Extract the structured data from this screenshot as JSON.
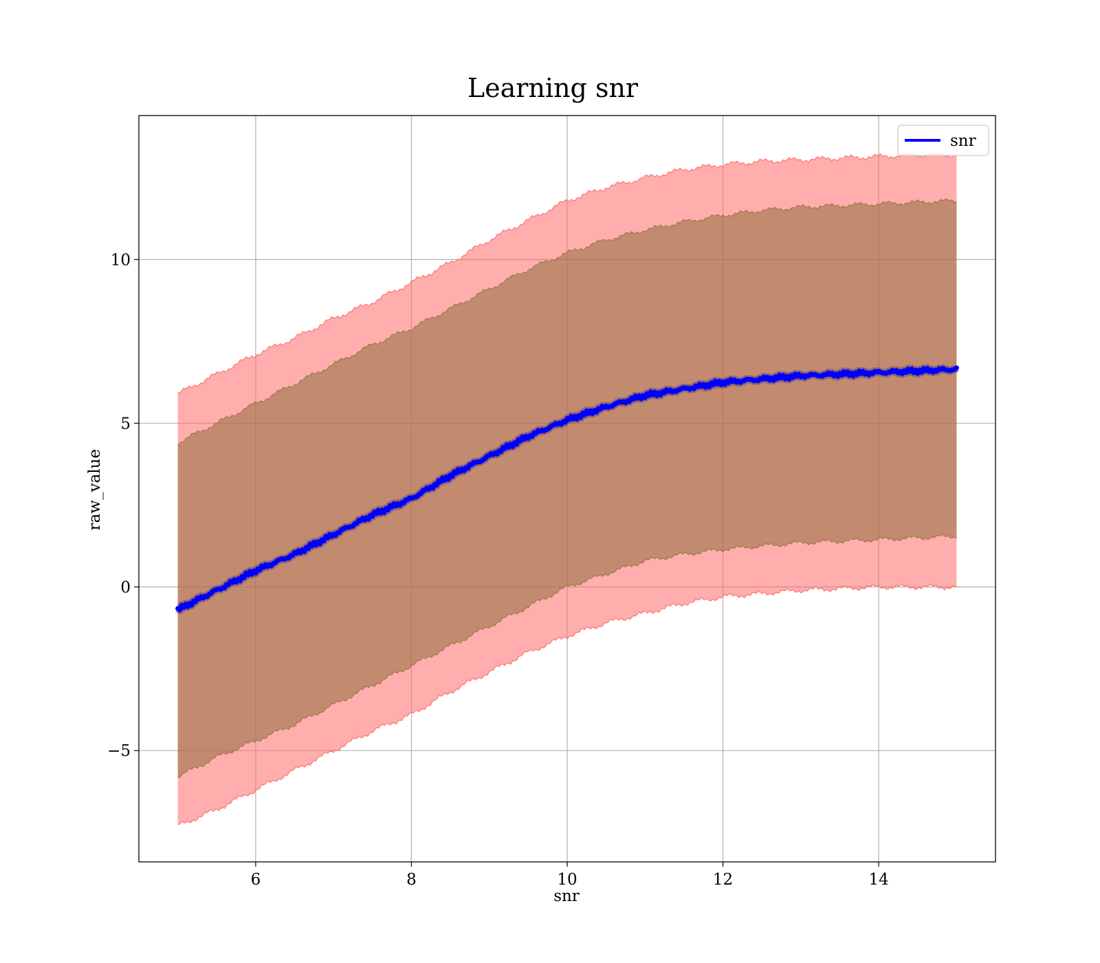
{
  "chart_data": {
    "type": "line",
    "title": "Learning snr",
    "xlabel": "snr",
    "ylabel": "raw_value",
    "xlim": [
      4.5,
      15.5
    ],
    "ylim": [
      -8.4,
      14.4
    ],
    "xticks": [
      6,
      8,
      10,
      12,
      14
    ],
    "xtick_labels": [
      "6",
      "8",
      "10",
      "12",
      "14"
    ],
    "yticks": [
      -5,
      0,
      5,
      10
    ],
    "ytick_labels": [
      "−5",
      "0",
      "5",
      "10"
    ],
    "grid": true,
    "legend": {
      "placement": "top-right",
      "entries": [
        "snr"
      ]
    },
    "colors": {
      "line": "#0000ff",
      "outer_band": "#ff6a6a",
      "inner_band": "#8f6f3c",
      "grid": "#b0b0b0"
    },
    "x": [
      5,
      5.5,
      6,
      6.5,
      7,
      7.5,
      8,
      8.5,
      9,
      9.5,
      10,
      10.5,
      11,
      11.5,
      12,
      12.5,
      13,
      13.5,
      14,
      14.5,
      15
    ],
    "series": [
      {
        "name": "snr",
        "values": [
          -0.7,
          -0.1,
          0.5,
          1.0,
          1.6,
          2.2,
          2.7,
          3.4,
          4.0,
          4.6,
          5.1,
          5.5,
          5.85,
          6.05,
          6.25,
          6.35,
          6.45,
          6.5,
          6.55,
          6.6,
          6.65
        ]
      }
    ],
    "bands": [
      {
        "label": "outer",
        "lower": [
          -7.3,
          -6.8,
          -6.2,
          -5.6,
          -5.0,
          -4.4,
          -3.9,
          -3.2,
          -2.6,
          -2.0,
          -1.5,
          -1.1,
          -0.8,
          -0.5,
          -0.3,
          -0.2,
          -0.1,
          -0.05,
          0.0,
          0.0,
          0.0
        ],
        "upper": [
          5.9,
          6.5,
          7.1,
          7.6,
          8.2,
          8.7,
          9.3,
          9.9,
          10.6,
          11.2,
          11.8,
          12.2,
          12.5,
          12.75,
          12.9,
          13.0,
          13.05,
          13.1,
          13.15,
          13.2,
          13.2
        ]
      },
      {
        "label": "inner",
        "lower": [
          -5.8,
          -5.2,
          -4.7,
          -4.2,
          -3.6,
          -3.0,
          -2.4,
          -1.8,
          -1.2,
          -0.6,
          0.0,
          0.4,
          0.8,
          1.0,
          1.15,
          1.25,
          1.35,
          1.4,
          1.45,
          1.5,
          1.55
        ],
        "upper": [
          4.4,
          5.0,
          5.6,
          6.2,
          6.8,
          7.4,
          7.9,
          8.5,
          9.1,
          9.7,
          10.2,
          10.6,
          10.9,
          11.15,
          11.35,
          11.5,
          11.6,
          11.65,
          11.7,
          11.75,
          11.8
        ]
      }
    ]
  }
}
